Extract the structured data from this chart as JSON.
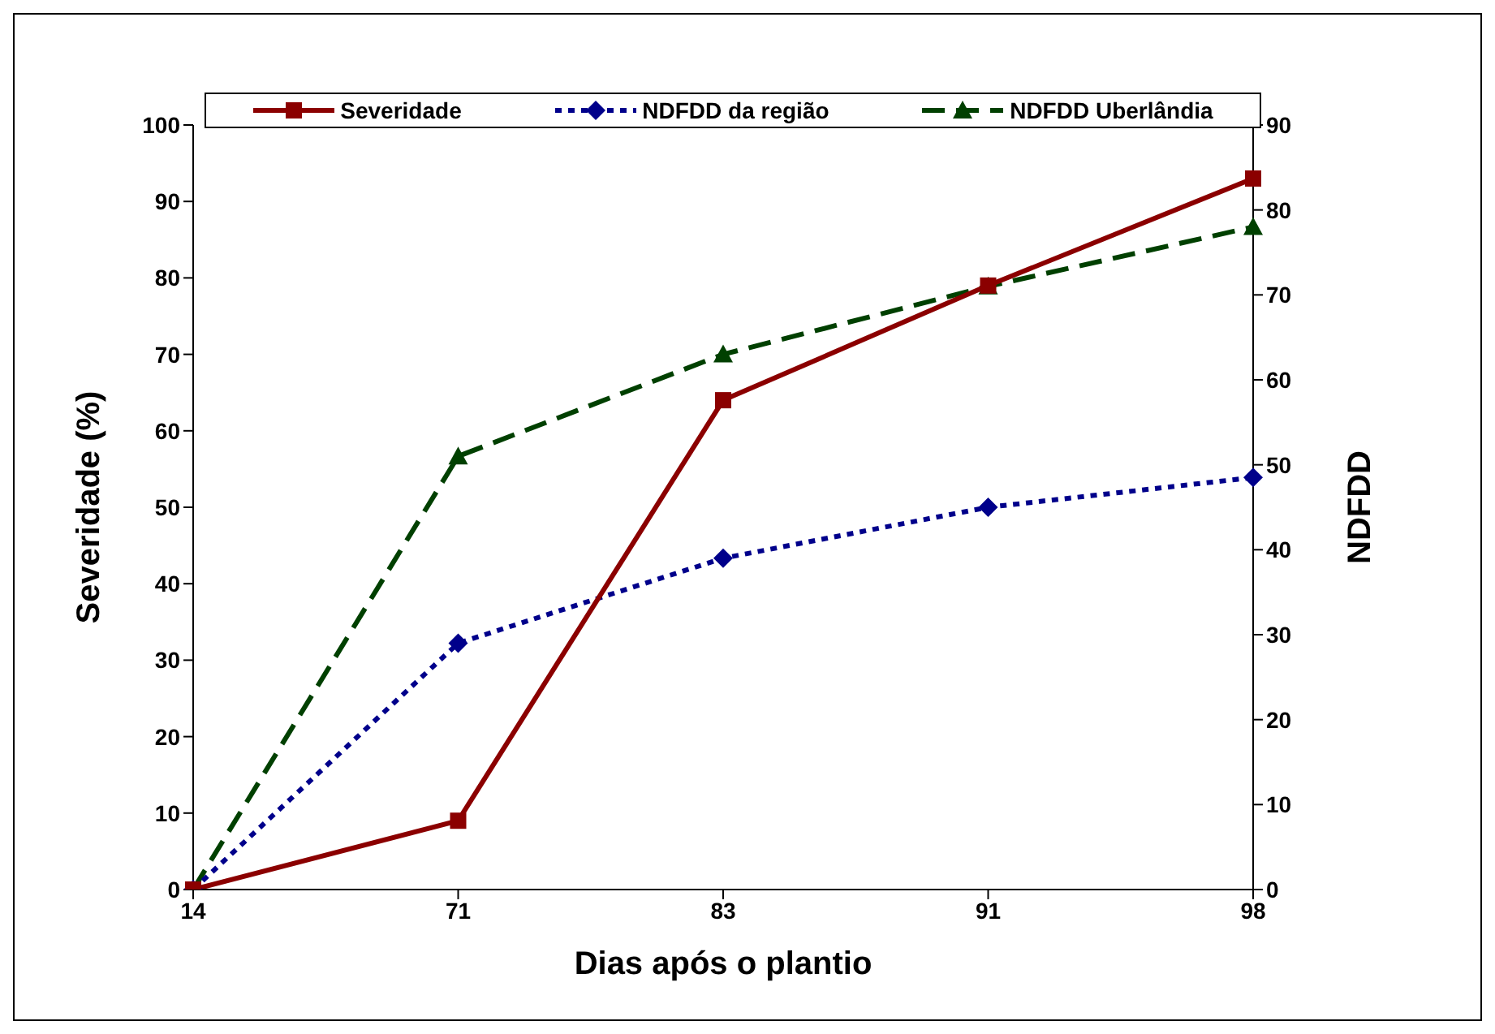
{
  "chart_data": {
    "type": "line",
    "xlabel": "Dias após o plantio",
    "ylabel": "Severidade (%)",
    "y2label": "NDFDD",
    "categories": [
      "14",
      "71",
      "83",
      "91",
      "98"
    ],
    "series": [
      {
        "name": "Severidade",
        "color": "#8b0000",
        "values": [
          0,
          9,
          64,
          79,
          93
        ],
        "marker": "square",
        "line_style": "solid"
      },
      {
        "name": "NDFDD da região",
        "color": "#00008b",
        "values": [
          0,
          29,
          39,
          45,
          48.5
        ],
        "axis": "y2",
        "marker": "diamond",
        "line_style": "dotted"
      },
      {
        "name": "NDFDD Uberlândia",
        "color": "#004000",
        "values": [
          0,
          51,
          63,
          71,
          78
        ],
        "axis": "y2",
        "marker": "triangle",
        "line_style": "dashed"
      }
    ],
    "ylim": [
      0,
      100
    ],
    "yticks": [
      0,
      10,
      20,
      30,
      40,
      50,
      60,
      70,
      80,
      90,
      100
    ],
    "y2lim": [
      0,
      90
    ],
    "y2ticks": [
      0,
      10,
      20,
      30,
      40,
      50,
      60,
      70,
      80,
      90
    ],
    "grid": false,
    "legend": "top"
  }
}
